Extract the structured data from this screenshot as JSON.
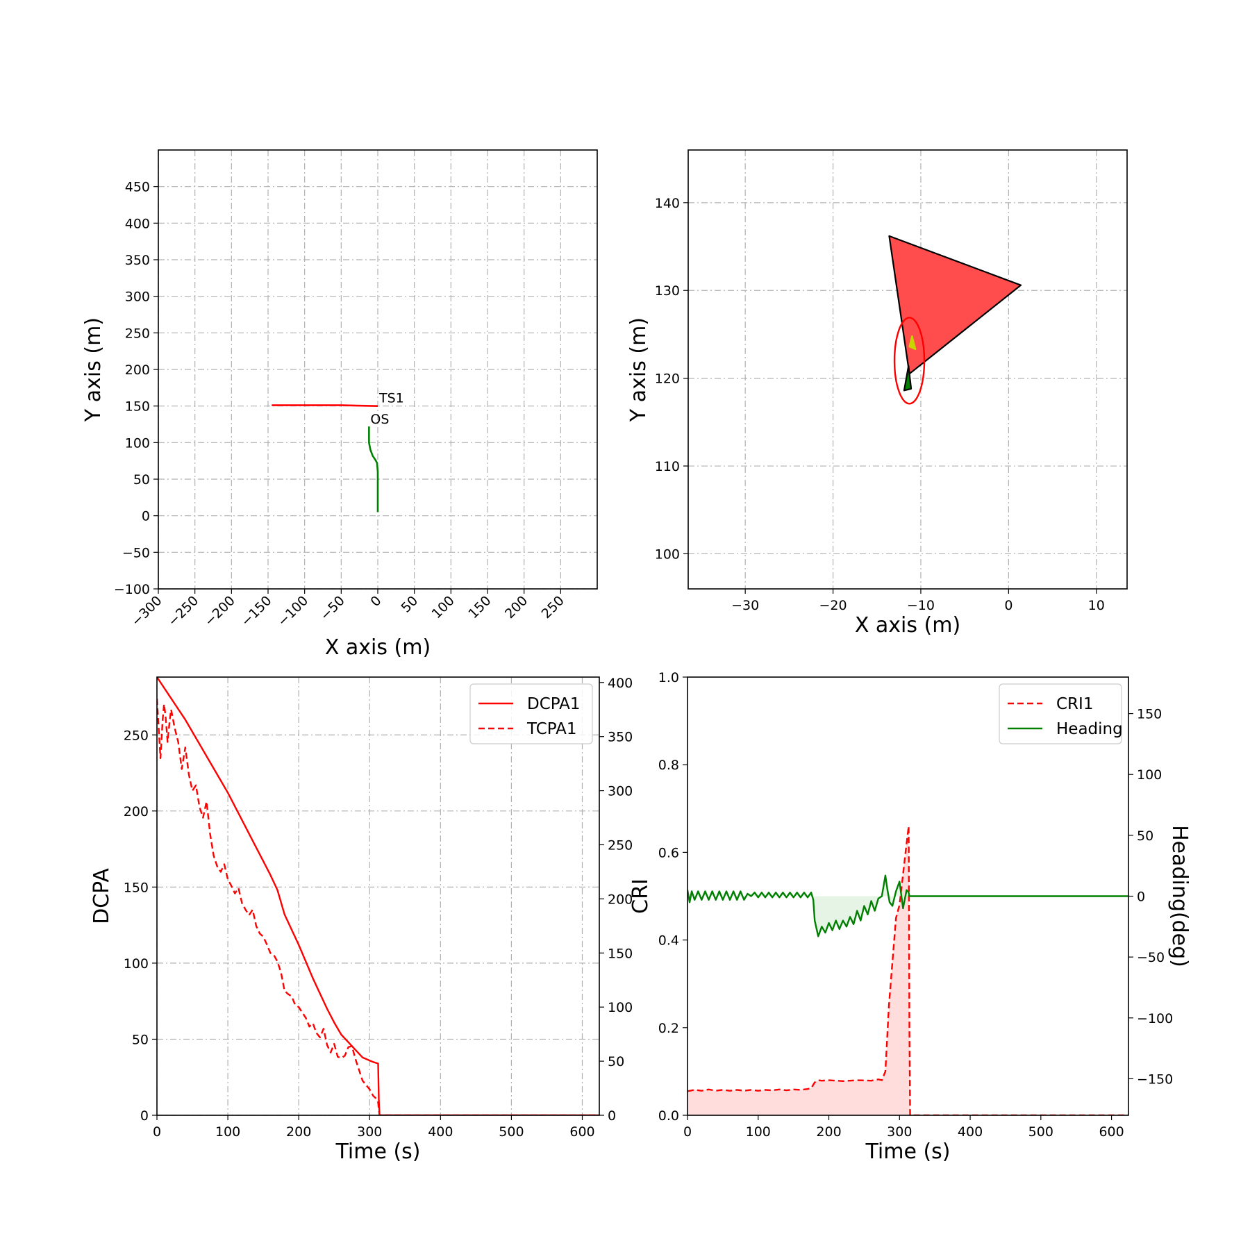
{
  "chart_data": [
    {
      "type": "line",
      "xlabel": "X axis (m)",
      "ylabel": "Y axis (m)",
      "xlim": [
        -300,
        300
      ],
      "ylim": [
        -100,
        500
      ],
      "xticks": [
        -300,
        -250,
        -200,
        -150,
        -100,
        -50,
        0,
        50,
        100,
        150,
        200,
        250
      ],
      "xtick_labels": [
        "−300",
        "−250",
        "−200",
        "−150",
        "−100",
        "−50",
        "0",
        "50",
        "100",
        "150",
        "200",
        "250"
      ],
      "yticks": [
        -100,
        -50,
        0,
        50,
        100,
        150,
        200,
        250,
        300,
        350,
        400,
        450
      ],
      "ytick_labels": [
        "−100",
        "−50",
        "0",
        "50",
        "100",
        "150",
        "200",
        "250",
        "300",
        "350",
        "400",
        "450"
      ],
      "grid": true,
      "series": [
        {
          "color": "#ff0000",
          "x": [
            -145,
            -100,
            -50,
            0
          ],
          "y": [
            151,
            151,
            151,
            150
          ]
        },
        {
          "color": "#008000",
          "x": [
            0,
            0,
            0,
            -1,
            -3,
            -7,
            -10,
            -12,
            -12,
            -12
          ],
          "y": [
            5,
            30,
            60,
            72,
            76,
            82,
            90,
            100,
            110,
            122
          ]
        }
      ],
      "annotations": [
        {
          "text": "TS1",
          "x": 0,
          "y": 151
        },
        {
          "text": "OS",
          "x": -12,
          "y": 122
        }
      ]
    },
    {
      "type": "line",
      "xlabel": "X axis (m)",
      "ylabel": "Y axis (m)",
      "xlim": [
        -36.5,
        13.5
      ],
      "ylim": [
        96,
        146
      ],
      "xticks": [
        -30,
        -20,
        -10,
        0,
        10
      ],
      "xtick_labels": [
        "−30",
        "−20",
        "−10",
        "0",
        "10"
      ],
      "yticks": [
        100,
        110,
        120,
        130,
        140
      ],
      "ytick_labels": [
        "100",
        "110",
        "120",
        "130",
        "140"
      ],
      "grid": true,
      "shapes": [
        {
          "kind": "polygon",
          "role": "collision cone",
          "fill": "#ff4d4d",
          "edge": "#000000",
          "points": [
            [
              -13.6,
              136.2
            ],
            [
              1.4,
              130.6
            ],
            [
              -11.3,
              120.5
            ]
          ]
        },
        {
          "kind": "ellipse",
          "role": "ship domain",
          "edge": "#ff0000",
          "center": [
            -11.3,
            122
          ],
          "rx": 1.7,
          "ry": 4.9
        },
        {
          "kind": "polygon",
          "role": "own ship",
          "fill": "#008000",
          "edge": "#000000",
          "points": [
            [
              -11.9,
              118.6
            ],
            [
              -11.1,
              118.8
            ],
            [
              -11.4,
              121.4
            ]
          ]
        },
        {
          "kind": "polygon",
          "role": "target marker",
          "fill": "#c8d400",
          "edge": "#c8d400",
          "points": [
            [
              -11,
              124.8
            ],
            [
              -10.6,
              123.3
            ],
            [
              -11.3,
              123.6
            ]
          ]
        }
      ]
    },
    {
      "type": "line",
      "xlabel": "Time (s)",
      "ylabel": "DCPA",
      "xlim": [
        0,
        624
      ],
      "ylim": [
        0,
        288
      ],
      "y2lim": [
        0,
        405
      ],
      "xticks": [
        0,
        100,
        200,
        300,
        400,
        500,
        600
      ],
      "yticks": [
        0,
        50,
        100,
        150,
        200,
        250
      ],
      "y2ticks": [
        0,
        50,
        100,
        150,
        200,
        250,
        300,
        350,
        400
      ],
      "grid": true,
      "legend": {
        "position": "top-right",
        "items": [
          "DCPA1",
          "TCPA1"
        ]
      },
      "series": [
        {
          "name": "DCPA1",
          "axis": "left",
          "color": "#ff0000",
          "style": "solid",
          "x": [
            0,
            20,
            40,
            60,
            80,
            100,
            120,
            140,
            160,
            170,
            180,
            190,
            200,
            210,
            220,
            230,
            240,
            250,
            260,
            270,
            280,
            290,
            300,
            305,
            312,
            313,
            314,
            400,
            500,
            624
          ],
          "y": [
            288,
            274,
            260,
            244,
            228,
            212,
            194,
            176,
            158,
            148,
            132,
            122,
            112,
            101,
            90,
            80,
            70,
            61,
            53,
            48,
            43,
            38,
            36,
            35,
            34,
            10,
            0,
            0,
            0,
            0
          ]
        },
        {
          "name": "TCPA1",
          "axis": "right",
          "color": "#ff0000",
          "style": "dashed",
          "x": [
            0,
            5,
            8,
            10,
            12,
            15,
            18,
            20,
            25,
            30,
            35,
            40,
            45,
            50,
            55,
            60,
            65,
            70,
            75,
            80,
            85,
            90,
            95,
            100,
            105,
            110,
            115,
            120,
            125,
            130,
            135,
            140,
            145,
            150,
            155,
            160,
            165,
            170,
            175,
            180,
            185,
            190,
            195,
            200,
            205,
            210,
            215,
            220,
            225,
            230,
            235,
            240,
            245,
            250,
            255,
            260,
            265,
            270,
            275,
            280,
            285,
            290,
            295,
            300,
            305,
            310,
            312,
            313,
            314,
            400,
            500,
            624
          ],
          "y": [
            385,
            330,
            365,
            380,
            370,
            345,
            365,
            375,
            358,
            345,
            320,
            340,
            315,
            300,
            305,
            285,
            275,
            290,
            260,
            240,
            230,
            225,
            232,
            218,
            212,
            205,
            210,
            196,
            190,
            185,
            190,
            175,
            168,
            165,
            158,
            150,
            148,
            142,
            132,
            115,
            112,
            110,
            102,
            100,
            95,
            90,
            82,
            85,
            76,
            72,
            80,
            65,
            58,
            66,
            54,
            53,
            55,
            63,
            64,
            52,
            42,
            32,
            28,
            24,
            18,
            15,
            12,
            5,
            0,
            0,
            0,
            0
          ]
        }
      ]
    },
    {
      "type": "line",
      "xlabel": "Time (s)",
      "ylabel": "CRI",
      "y2label": "Heading(deg)",
      "xlim": [
        0,
        624
      ],
      "ylim": [
        0,
        1
      ],
      "y2lim": [
        -180,
        180
      ],
      "xticks": [
        0,
        100,
        200,
        300,
        400,
        500,
        600
      ],
      "yticks": [
        0,
        0.2,
        0.4,
        0.6,
        0.8,
        1.0
      ],
      "ytick_labels": [
        "0.0",
        "0.2",
        "0.4",
        "0.6",
        "0.8",
        "1.0"
      ],
      "y2ticks": [
        -150,
        -100,
        -50,
        0,
        50,
        100,
        150
      ],
      "y2tick_labels": [
        "−150",
        "−100",
        "−50",
        "0",
        "50",
        "100",
        "150"
      ],
      "grid": false,
      "legend": {
        "position": "top-right",
        "items": [
          "CRI1",
          "Heading"
        ]
      },
      "series": [
        {
          "name": "CRI1",
          "axis": "left",
          "color": "#ff0000",
          "style": "dashed",
          "fill": "#ffdddd",
          "x": [
            0,
            10,
            20,
            30,
            40,
            50,
            60,
            70,
            80,
            90,
            100,
            110,
            120,
            130,
            140,
            150,
            160,
            170,
            175,
            180,
            185,
            190,
            200,
            220,
            240,
            260,
            270,
            275,
            280,
            285,
            290,
            295,
            300,
            305,
            310,
            313,
            314,
            315,
            320,
            400,
            500,
            624
          ],
          "y": [
            0.055,
            0.058,
            0.056,
            0.059,
            0.056,
            0.058,
            0.056,
            0.058,
            0.056,
            0.058,
            0.056,
            0.058,
            0.057,
            0.059,
            0.057,
            0.059,
            0.058,
            0.06,
            0.062,
            0.075,
            0.08,
            0.079,
            0.08,
            0.078,
            0.08,
            0.079,
            0.082,
            0.08,
            0.1,
            0.25,
            0.35,
            0.45,
            0.48,
            0.55,
            0.62,
            0.66,
            0.2,
            0,
            0,
            0,
            0,
            0
          ]
        },
        {
          "name": "Heading",
          "axis": "right",
          "color": "#008000",
          "style": "solid",
          "fill": "#e6f4e6",
          "x": [
            0,
            3,
            6,
            10,
            15,
            20,
            25,
            30,
            35,
            40,
            45,
            50,
            55,
            60,
            65,
            70,
            75,
            80,
            85,
            90,
            95,
            100,
            105,
            110,
            115,
            120,
            125,
            130,
            135,
            140,
            145,
            150,
            155,
            160,
            165,
            170,
            175,
            178,
            180,
            185,
            190,
            195,
            200,
            205,
            210,
            215,
            220,
            225,
            230,
            235,
            240,
            245,
            250,
            255,
            260,
            265,
            270,
            275,
            280,
            283,
            286,
            290,
            295,
            300,
            305,
            310,
            313,
            314,
            316,
            320,
            400,
            500,
            624
          ],
          "y": [
            5,
            -5,
            4,
            -3,
            4,
            -3,
            4,
            -3,
            4,
            -3,
            4,
            -3,
            4,
            -3,
            4,
            -3,
            4,
            -3,
            2,
            0,
            3,
            -1,
            3,
            -1,
            3,
            -1,
            3,
            -1,
            3,
            -1,
            3,
            -1,
            3,
            -1,
            3,
            -1,
            3,
            -3,
            -20,
            -33,
            -25,
            -30,
            -22,
            -28,
            -20,
            -27,
            -20,
            -25,
            -17,
            -23,
            -12,
            -20,
            -8,
            -15,
            -4,
            -12,
            -2,
            0,
            17,
            5,
            -5,
            -8,
            4,
            12,
            -10,
            5,
            3,
            0,
            0,
            0,
            0,
            0,
            0
          ]
        }
      ]
    }
  ]
}
